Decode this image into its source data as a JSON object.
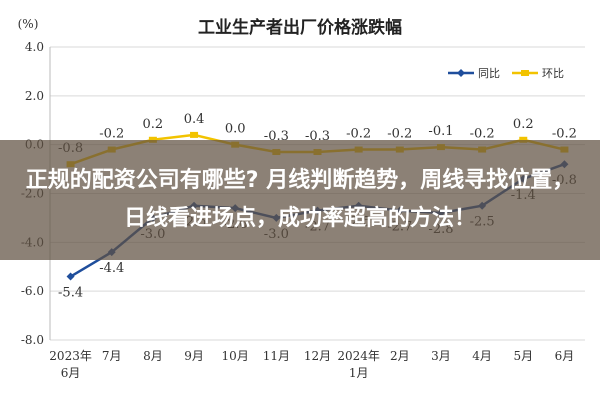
{
  "chart_data": {
    "type": "line",
    "title": "工业生产者出厂价格涨跌幅",
    "ylabel": "(%)",
    "ylim": [
      -8.0,
      4.0
    ],
    "yticks": [
      "4.0",
      "2.0",
      "0.0",
      "-2.0",
      "-4.0",
      "-6.0",
      "-8.0"
    ],
    "categories": [
      [
        "2023年",
        "6月"
      ],
      [
        "7月"
      ],
      [
        "8月"
      ],
      [
        "9月"
      ],
      [
        "10月"
      ],
      [
        "11月"
      ],
      [
        "12月"
      ],
      [
        "2024年",
        "1月"
      ],
      [
        "2月"
      ],
      [
        "3月"
      ],
      [
        "4月"
      ],
      [
        "5月"
      ],
      [
        "6月"
      ]
    ],
    "legend_position": "top-right",
    "series": [
      {
        "name": "同比",
        "color": "#1f4e9c",
        "values": [
          -5.4,
          -4.4,
          -3.0,
          -2.5,
          -2.6,
          -3.0,
          -2.7,
          -2.5,
          -2.7,
          -2.8,
          -2.5,
          -1.4,
          -0.8
        ],
        "labels": [
          "-5.4",
          "-4.4",
          "-3.0",
          "-2.5",
          "-2.6",
          "-3.0",
          "-2.7",
          "-2.5",
          "-2.7",
          "-2.8",
          "-2.5",
          "-1.4",
          "-0.8"
        ]
      },
      {
        "name": "环比",
        "color": "#f2c300",
        "values": [
          -0.8,
          -0.2,
          0.2,
          0.4,
          0.0,
          -0.3,
          -0.3,
          -0.2,
          -0.2,
          -0.1,
          -0.2,
          0.2,
          -0.2
        ],
        "labels": [
          "-0.8",
          "-0.2",
          "0.2",
          "0.4",
          "0.0",
          "-0.3",
          "-0.3",
          "-0.2",
          "-0.2",
          "-0.1",
          "-0.2",
          "0.2",
          "-0.2"
        ]
      }
    ]
  },
  "banner": {
    "text": "正规的配资公司有哪些? 月线判断趋势，周线寻找位置，日线看进场点，成功率超高的方法！"
  }
}
